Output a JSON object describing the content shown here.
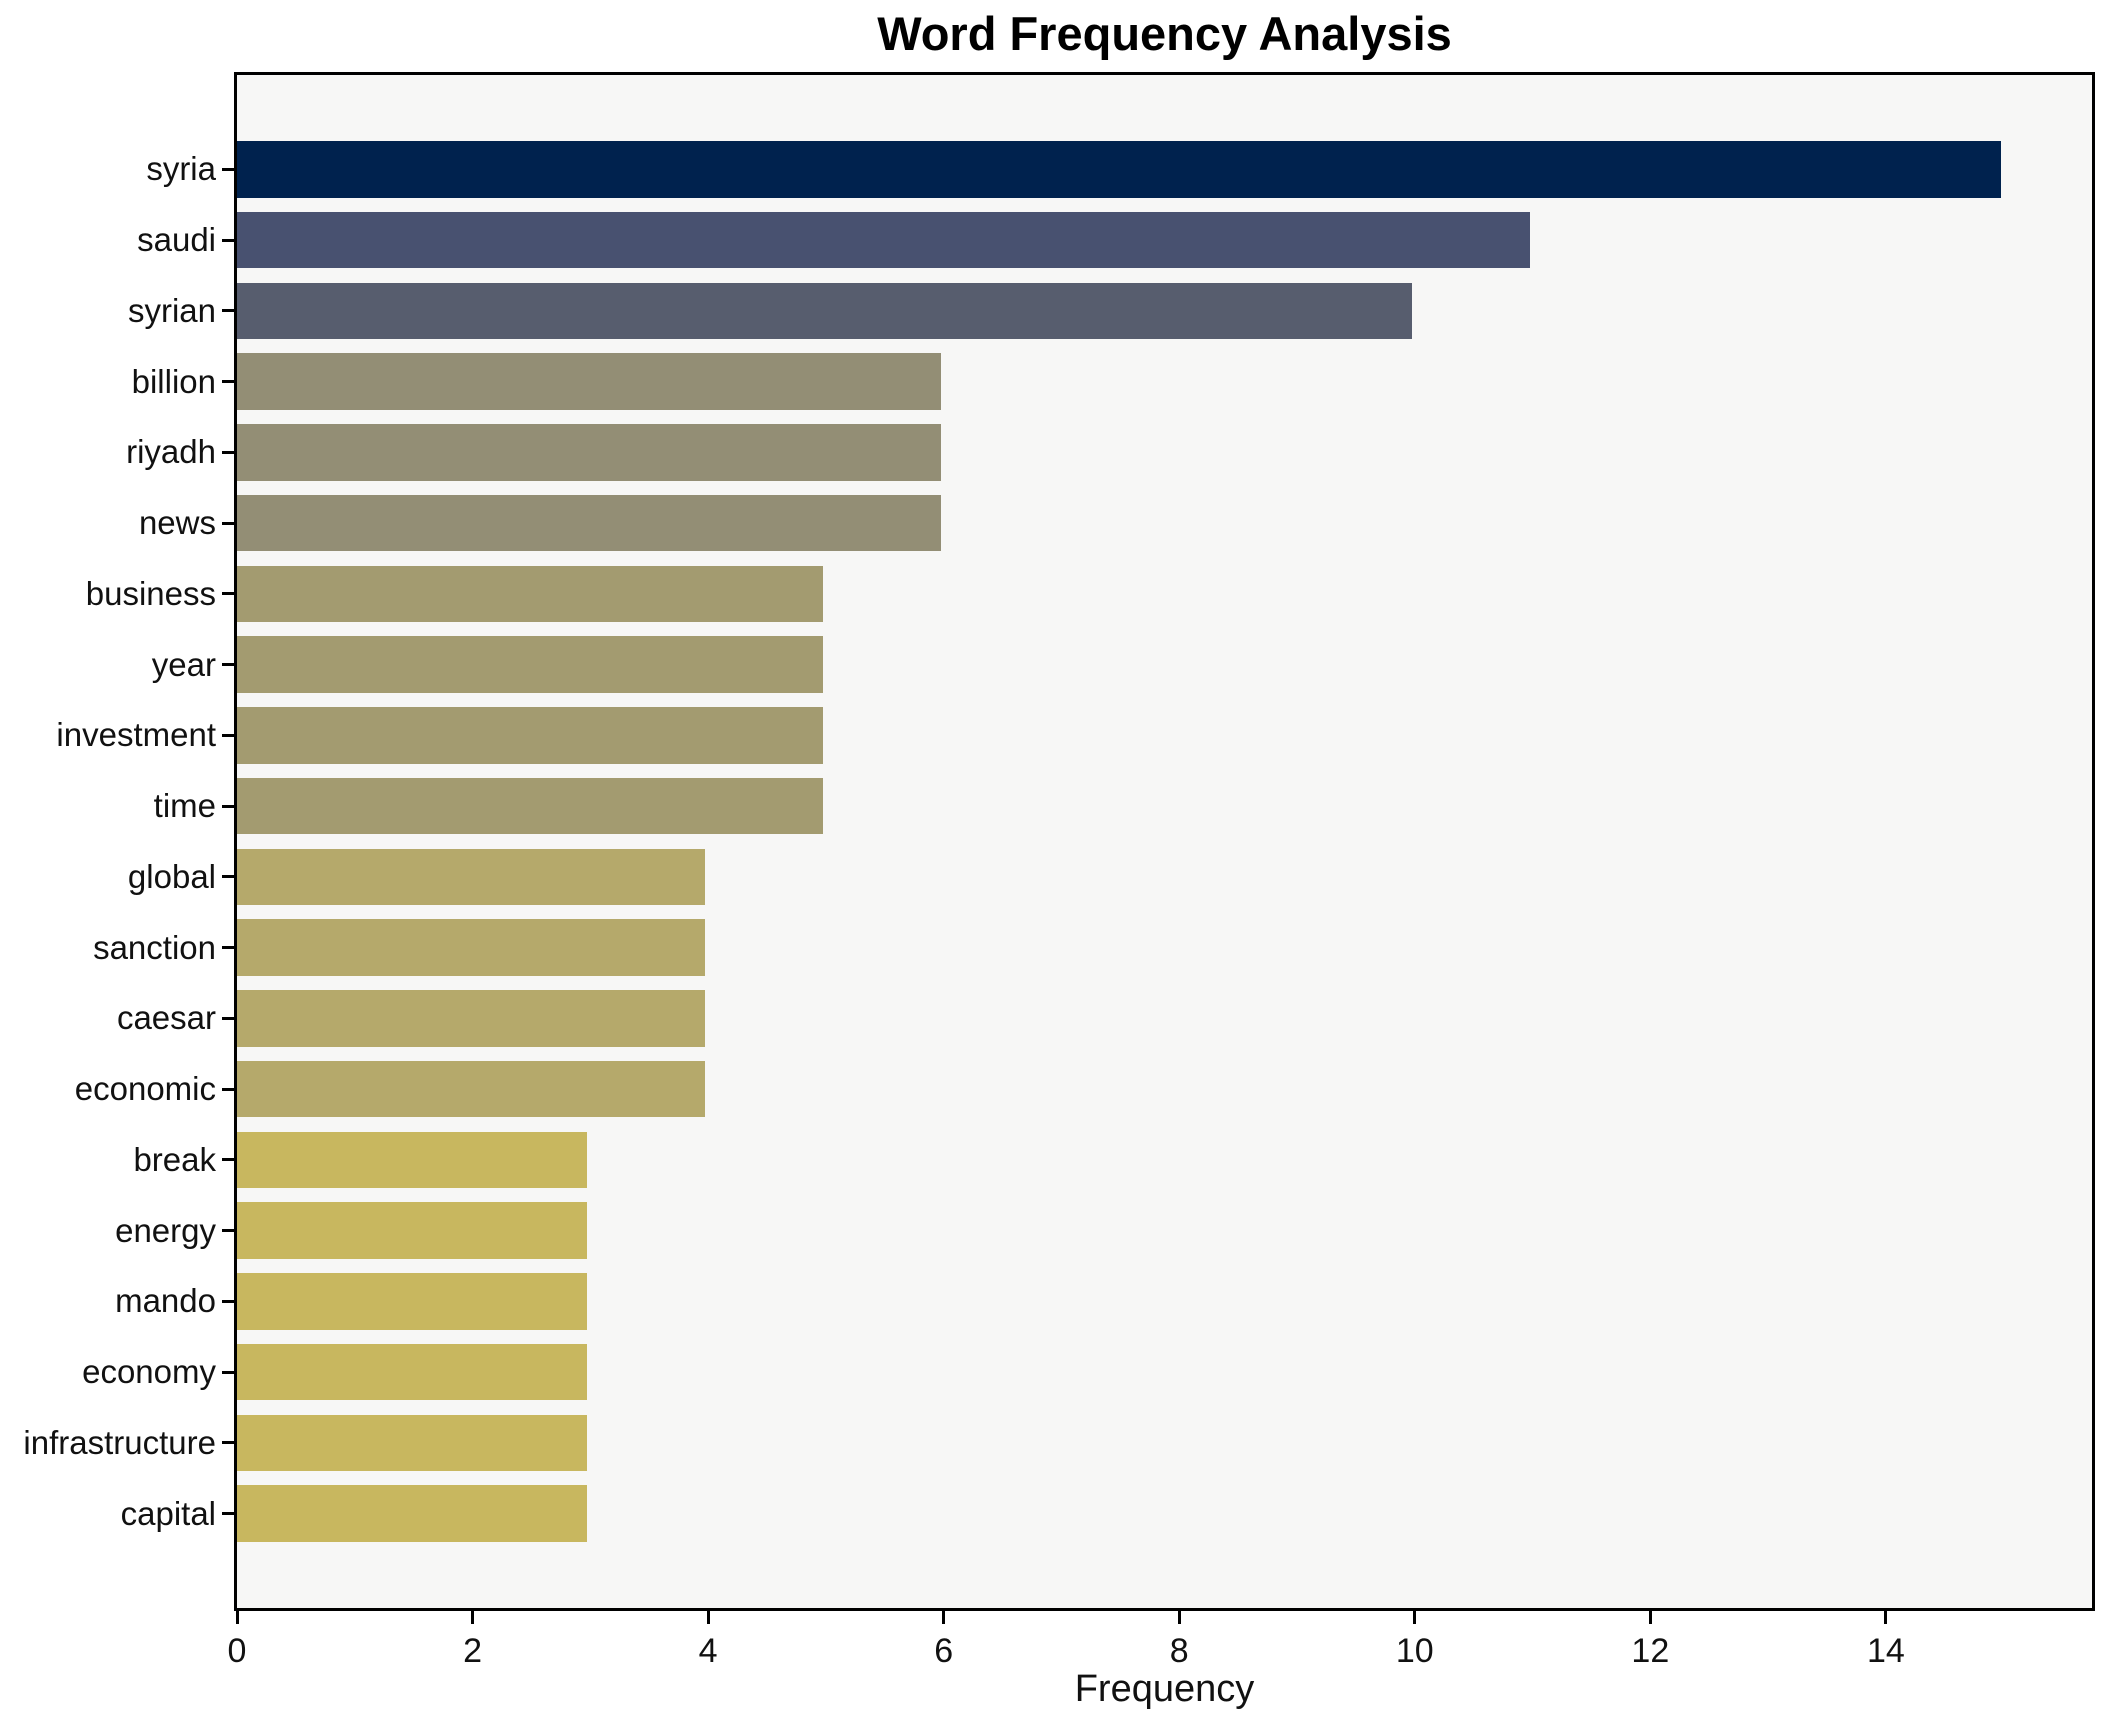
{
  "chart_data": {
    "type": "bar",
    "orientation": "horizontal",
    "title": "Word Frequency Analysis",
    "xlabel": "Frequency",
    "ylabel": "",
    "categories": [
      "syria",
      "saudi",
      "syrian",
      "billion",
      "riyadh",
      "news",
      "business",
      "year",
      "investment",
      "time",
      "global",
      "sanction",
      "caesar",
      "economic",
      "break",
      "energy",
      "mando",
      "economy",
      "infrastructure",
      "capital"
    ],
    "values": [
      15,
      11,
      10,
      6,
      6,
      6,
      5,
      5,
      5,
      5,
      4,
      4,
      4,
      4,
      3,
      3,
      3,
      3,
      3,
      3
    ],
    "bar_colors": [
      "#00224e",
      "#485170",
      "#575d6e",
      "#938e75",
      "#938e75",
      "#938e75",
      "#a39b70",
      "#a39b70",
      "#a39b70",
      "#a39b70",
      "#b5a96b",
      "#b5a96b",
      "#b5a96b",
      "#b5a96b",
      "#c8b75f",
      "#c8b75f",
      "#c8b75f",
      "#c8b75f",
      "#c8b75f",
      "#c8b75f"
    ],
    "xlim": [
      0,
      15.75
    ],
    "x_ticks": [
      0,
      2,
      4,
      6,
      8,
      10,
      12,
      14
    ],
    "grid": false,
    "legend": "none",
    "colormap": "cividis-reversed-by-value",
    "plot_background": "#f7f7f6",
    "figure_background": "#ffffff",
    "spine_color": "#000000"
  }
}
